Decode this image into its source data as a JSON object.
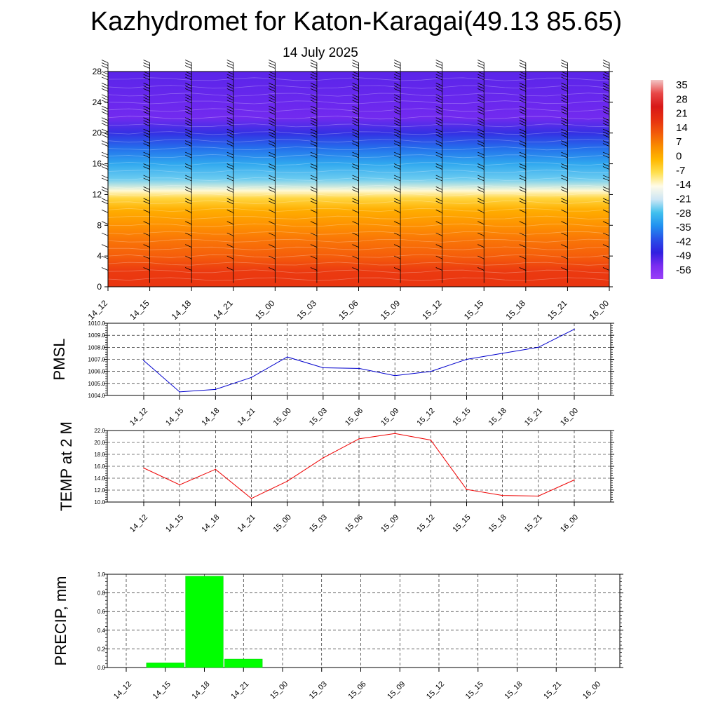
{
  "title": "Kazhydromet for Katon-Karagai(49.13 85.65)",
  "subtitle": "14 July 2025",
  "colorbar": {
    "labels": [
      "35",
      "28",
      "21",
      "14",
      "7",
      "0",
      "-7",
      "-14",
      "-21",
      "-28",
      "-35",
      "-42",
      "-49",
      "-56"
    ],
    "stops": [
      "#f2c4c4",
      "#e84848",
      "#d81818",
      "#e63010",
      "#f25a0a",
      "#f98c00",
      "#ffb800",
      "#ffe050",
      "#fffbe8",
      "#cde6f5",
      "#40c0ee",
      "#2090f0",
      "#2850e8",
      "#3020e0",
      "#7a2cf0",
      "#9a40f8"
    ]
  },
  "chart_data": [
    {
      "type": "heatmap",
      "description_label": "",
      "x_categories": [
        "14_12",
        "14_15",
        "14_18",
        "14_21",
        "15_00",
        "15_03",
        "15_06",
        "15_09",
        "15_12",
        "15_15",
        "15_18",
        "15_21",
        "16_00"
      ],
      "y_ticks": [
        "0",
        "4",
        "8",
        "12",
        "16",
        "20",
        "24",
        "28"
      ],
      "ylim": [
        0,
        28
      ],
      "zlim": [
        -56,
        35
      ],
      "temperature_by_level": [
        {
          "y": 0,
          "t": 21
        },
        {
          "y": 2,
          "t": 20
        },
        {
          "y": 4,
          "t": 14
        },
        {
          "y": 6,
          "t": 11
        },
        {
          "y": 8,
          "t": 7
        },
        {
          "y": 10,
          "t": 2
        },
        {
          "y": 11.5,
          "t": -5
        },
        {
          "y": 12.5,
          "t": -14
        },
        {
          "y": 14,
          "t": -24
        },
        {
          "y": 16,
          "t": -32
        },
        {
          "y": 18,
          "t": -40
        },
        {
          "y": 20,
          "t": -48
        },
        {
          "y": 22,
          "t": -58
        },
        {
          "y": 24,
          "t": -56
        },
        {
          "y": 28,
          "t": -54
        }
      ],
      "overlay": "wind barbs"
    },
    {
      "type": "line",
      "ylabel": "PMSL",
      "x_categories": [
        "14_12",
        "14_15",
        "14_18",
        "14_21",
        "15_00",
        "15_03",
        "15_06",
        "15_09",
        "15_12",
        "15_15",
        "15_18",
        "15_21",
        "16_00"
      ],
      "y_ticks": [
        "1004.0",
        "1005.0",
        "1006.0",
        "1007.0",
        "1008.0",
        "1009.0",
        "1010.0"
      ],
      "ylim": [
        1004,
        1010
      ],
      "series": [
        {
          "values": [
            1006.9,
            1004.3,
            1004.5,
            1005.5,
            1007.2,
            1006.3,
            1006.25,
            1005.65,
            1006.0,
            1007.0,
            1007.5,
            1008.0,
            1009.5
          ],
          "color": "#0000cc"
        }
      ]
    },
    {
      "type": "line",
      "ylabel": "TEMP at 2 M",
      "x_categories": [
        "14_12",
        "14_15",
        "14_18",
        "14_21",
        "15_00",
        "15_03",
        "15_06",
        "15_09",
        "15_12",
        "15_15",
        "15_18",
        "15_21",
        "16_00"
      ],
      "y_ticks": [
        "10.0",
        "12.0",
        "14.0",
        "16.0",
        "18.0",
        "20.0",
        "22.0"
      ],
      "ylim": [
        10,
        22
      ],
      "series": [
        {
          "values": [
            15.7,
            12.9,
            15.5,
            10.6,
            13.5,
            17.4,
            20.6,
            21.5,
            20.4,
            12.1,
            11.1,
            11.0,
            13.7
          ],
          "color": "#ee0000"
        }
      ]
    },
    {
      "type": "bar",
      "ylabel": "PRECIP, mm",
      "x_categories": [
        "14_12",
        "14_15",
        "14_18",
        "14_21",
        "15_00",
        "15_03",
        "15_06",
        "15_09",
        "15_12",
        "15_15",
        "15_18",
        "15_21",
        "16_00"
      ],
      "y_ticks": [
        "0.0",
        "0.2",
        "0.4",
        "0.6",
        "0.8",
        "1.0"
      ],
      "ylim": [
        0,
        1.0
      ],
      "values": [
        0.0,
        0.05,
        0.98,
        0.09,
        0.0,
        0.0,
        0.0,
        0.0,
        0.0,
        0.0,
        0.0,
        0.0,
        0.0
      ],
      "color": "#00ff00"
    }
  ]
}
